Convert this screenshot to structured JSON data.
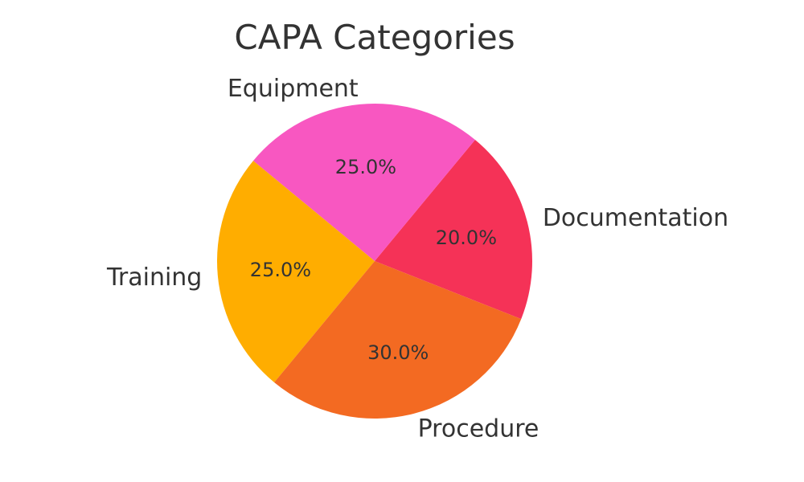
{
  "chart_data": {
    "type": "pie",
    "title": "CAPA Categories",
    "categories": [
      "Documentation",
      "Equipment",
      "Training",
      "Procedure"
    ],
    "values": [
      20.0,
      25.0,
      25.0,
      30.0
    ],
    "value_labels": [
      "20.0%",
      "25.0%",
      "25.0%",
      "30.0%"
    ],
    "colors": [
      "#f53257",
      "#f857c1",
      "#ffad00",
      "#f36a22"
    ],
    "start_angle_deg": -21.6,
    "direction": "counterclockwise",
    "legend": "none"
  }
}
